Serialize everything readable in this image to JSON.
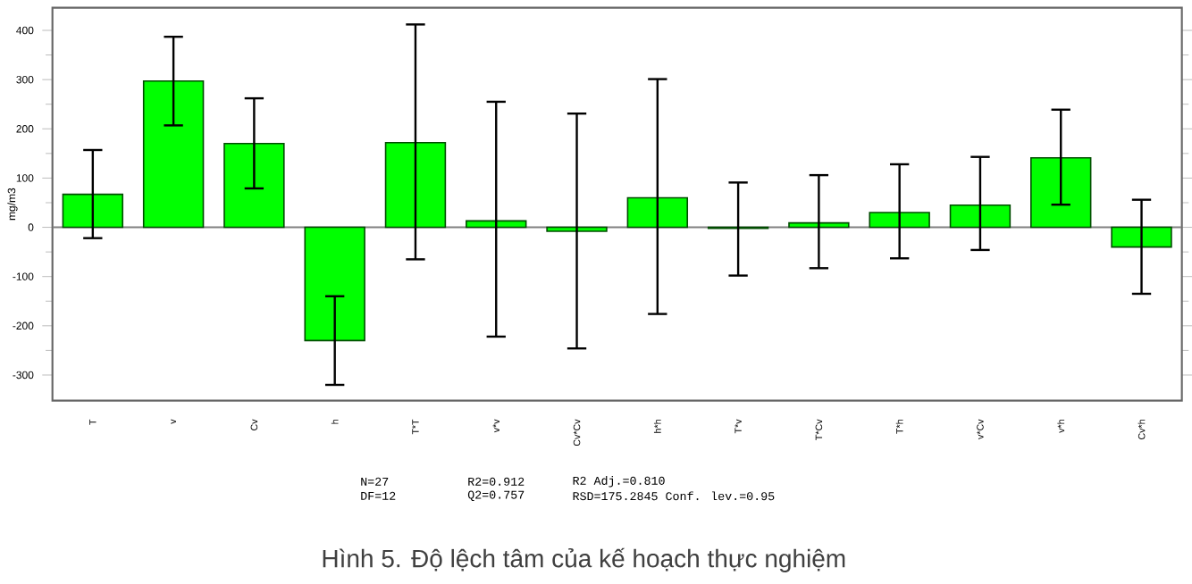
{
  "chart_data": {
    "type": "bar",
    "categories": [
      "T",
      "v",
      "Cv",
      "h",
      "T*T",
      "v*v",
      "Cv*Cv",
      "h*h",
      "T*v",
      "T*Cv",
      "T*h",
      "v*Cv",
      "v*h",
      "Cv*h"
    ],
    "values": [
      67,
      297,
      170,
      -230,
      172,
      13,
      -8,
      60,
      -2,
      9,
      30,
      45,
      141,
      -40
    ],
    "errors": [
      [
        -22,
        157
      ],
      [
        207,
        387
      ],
      [
        79,
        262
      ],
      [
        -320,
        -140
      ],
      [
        -65,
        412
      ],
      [
        -222,
        255
      ],
      [
        -246,
        231
      ],
      [
        -176,
        301
      ],
      [
        -98,
        91
      ],
      [
        -83,
        106
      ],
      [
        -63,
        128
      ],
      [
        -46,
        143
      ],
      [
        46,
        239
      ],
      [
        -135,
        56
      ]
    ],
    "color": "#00ff00",
    "ylabel": "mg/m3",
    "ylim": [
      -352,
      446
    ],
    "yticks": [
      -300,
      -200,
      -100,
      0,
      100,
      200,
      300,
      400
    ],
    "ref_lines": [
      {
        "axis": "y",
        "value": 0,
        "color": "#808080"
      }
    ],
    "annotations": [
      "N=27",
      "R2=0.912",
      "R2 Adj.=0.810",
      "DF=12",
      "Q2=0.757",
      "RSD=175.2845 Conf. lev.=0.95",
      "Hình 5. Độ lệch tâm của kế hoạch thực nghiệm"
    ]
  }
}
